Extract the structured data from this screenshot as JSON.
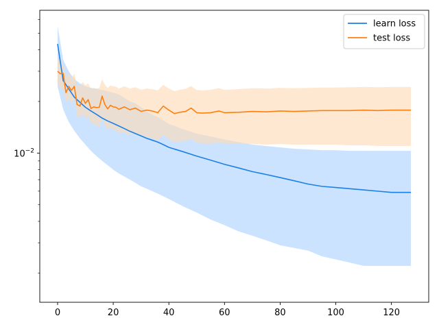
{
  "chart_data": {
    "type": "line",
    "title": "",
    "xlabel": "",
    "ylabel": "",
    "y_scale": "log",
    "xlim": [
      -6.4,
      133.4
    ],
    "ylim": [
      0.00135,
      0.068
    ],
    "grid": false,
    "legend": {
      "placement": "top-right"
    },
    "x_ticks": [
      {
        "value": 0,
        "label": "0"
      },
      {
        "value": 20,
        "label": "20"
      },
      {
        "value": 40,
        "label": "40"
      },
      {
        "value": 60,
        "label": "60"
      },
      {
        "value": 80,
        "label": "80"
      },
      {
        "value": 100,
        "label": "100"
      },
      {
        "value": 120,
        "label": "120"
      }
    ],
    "y_ticks": [
      {
        "value": 0.01,
        "label": "10^-2",
        "base": "10",
        "exp": "−2"
      }
    ],
    "y_minor_ticks": [
      0.002,
      0.003,
      0.004,
      0.005,
      0.006,
      0.007,
      0.008,
      0.009,
      0.02,
      0.03,
      0.04,
      0.05,
      0.06
    ],
    "series": [
      {
        "name": "learn loss",
        "color": "#1a7fe6",
        "band_color": "#a8d0ff",
        "x": [
          0,
          2,
          4,
          6,
          8,
          10,
          12,
          14,
          16,
          18,
          20,
          22,
          24,
          26,
          28,
          30,
          32,
          34,
          36,
          38,
          40,
          45,
          50,
          55,
          60,
          65,
          70,
          75,
          80,
          85,
          90,
          95,
          100,
          105,
          110,
          115,
          120,
          125,
          127
        ],
        "values": [
          0.0433,
          0.0265,
          0.0237,
          0.0212,
          0.0198,
          0.0185,
          0.0176,
          0.0168,
          0.016,
          0.0154,
          0.0149,
          0.0144,
          0.0139,
          0.0134,
          0.013,
          0.0126,
          0.0122,
          0.0119,
          0.0116,
          0.0112,
          0.0108,
          0.0102,
          0.0096,
          0.0091,
          0.0086,
          0.0082,
          0.0078,
          0.0075,
          0.0072,
          0.0069,
          0.0066,
          0.0064,
          0.0063,
          0.0062,
          0.0061,
          0.006,
          0.0059,
          0.0059,
          0.0059
        ],
        "lower": [
          0.0245,
          0.018,
          0.0152,
          0.0135,
          0.0122,
          0.0112,
          0.0103,
          0.0096,
          0.009,
          0.0085,
          0.008,
          0.0076,
          0.0073,
          0.007,
          0.0067,
          0.0064,
          0.0062,
          0.006,
          0.0058,
          0.0056,
          0.0054,
          0.0049,
          0.0045,
          0.0041,
          0.0038,
          0.0035,
          0.0033,
          0.0031,
          0.0029,
          0.0028,
          0.0027,
          0.0025,
          0.0024,
          0.0023,
          0.0022,
          0.0022,
          0.0022,
          0.0022,
          0.0022
        ],
        "upper": [
          0.055,
          0.035,
          0.03,
          0.027,
          0.0255,
          0.0245,
          0.024,
          0.0237,
          0.0233,
          0.023,
          0.0225,
          0.022,
          0.021,
          0.02,
          0.0195,
          0.0185,
          0.0175,
          0.0168,
          0.0162,
          0.0155,
          0.0148,
          0.0138,
          0.013,
          0.0125,
          0.012,
          0.0116,
          0.0112,
          0.011,
          0.0108,
          0.0106,
          0.0105,
          0.0104,
          0.0104,
          0.0103,
          0.0103,
          0.0103,
          0.0103,
          0.0103,
          0.0103
        ]
      },
      {
        "name": "test loss",
        "color": "#ff7f0e",
        "band_color": "#ffd8b3",
        "x": [
          0,
          1,
          2,
          3,
          4,
          5,
          6,
          7,
          8,
          9,
          10,
          11,
          12,
          13,
          14,
          15,
          16,
          17,
          18,
          19,
          20,
          21,
          22,
          24,
          26,
          28,
          30,
          32,
          34,
          36,
          38,
          40,
          42,
          44,
          46,
          48,
          50,
          52,
          55,
          58,
          60,
          65,
          70,
          75,
          80,
          85,
          90,
          95,
          100,
          105,
          110,
          115,
          120,
          125,
          127
        ],
        "values": [
          0.03,
          0.029,
          0.0292,
          0.0225,
          0.0245,
          0.0232,
          0.0245,
          0.0192,
          0.0188,
          0.021,
          0.0195,
          0.0205,
          0.0182,
          0.0186,
          0.0184,
          0.0185,
          0.0215,
          0.0192,
          0.0181,
          0.019,
          0.0186,
          0.0185,
          0.018,
          0.0186,
          0.0179,
          0.0183,
          0.0175,
          0.0178,
          0.0176,
          0.0172,
          0.0188,
          0.0178,
          0.017,
          0.0173,
          0.0175,
          0.0183,
          0.0172,
          0.0171,
          0.0172,
          0.0176,
          0.0172,
          0.0173,
          0.0175,
          0.0174,
          0.0176,
          0.0175,
          0.0176,
          0.0177,
          0.0177,
          0.0177,
          0.0178,
          0.0177,
          0.0178,
          0.0178,
          0.0178
        ],
        "lower": [
          0.025,
          0.024,
          0.0235,
          0.02,
          0.0205,
          0.0195,
          0.021,
          0.0165,
          0.016,
          0.017,
          0.0158,
          0.0165,
          0.015,
          0.0148,
          0.0145,
          0.0142,
          0.016,
          0.0145,
          0.0138,
          0.014,
          0.0138,
          0.0135,
          0.0132,
          0.0133,
          0.0128,
          0.013,
          0.0124,
          0.0125,
          0.0122,
          0.0118,
          0.0128,
          0.012,
          0.0116,
          0.0117,
          0.0117,
          0.0121,
          0.0115,
          0.0114,
          0.0114,
          0.0115,
          0.0114,
          0.0113,
          0.0113,
          0.0112,
          0.0113,
          0.0112,
          0.0112,
          0.0112,
          0.0112,
          0.0111,
          0.0111,
          0.011,
          0.011,
          0.011,
          0.011
        ],
        "upper": [
          0.0355,
          0.0345,
          0.033,
          0.028,
          0.0292,
          0.0275,
          0.029,
          0.025,
          0.0245,
          0.026,
          0.0248,
          0.0255,
          0.0235,
          0.024,
          0.0238,
          0.024,
          0.027,
          0.025,
          0.024,
          0.0248,
          0.0245,
          0.0244,
          0.0238,
          0.0245,
          0.0238,
          0.0242,
          0.0234,
          0.0238,
          0.0236,
          0.0232,
          0.025,
          0.0238,
          0.023,
          0.0234,
          0.0237,
          0.0246,
          0.0233,
          0.0232,
          0.0234,
          0.0239,
          0.0234,
          0.0236,
          0.0239,
          0.0238,
          0.024,
          0.0239,
          0.024,
          0.0241,
          0.0241,
          0.0242,
          0.0243,
          0.0242,
          0.0243,
          0.0243,
          0.0243
        ]
      }
    ]
  }
}
